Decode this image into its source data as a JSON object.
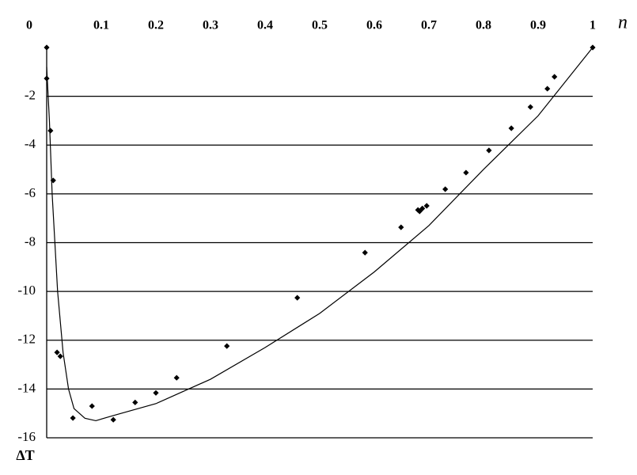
{
  "chart_data": {
    "type": "scatter",
    "x_label": "n",
    "y_label": "ΔT",
    "xlim": [
      0,
      1
    ],
    "ylim": [
      -16,
      0
    ],
    "xticks": [
      0,
      0.1,
      0.2,
      0.3,
      0.4,
      0.5,
      0.6,
      0.7,
      0.8,
      0.9,
      1
    ],
    "yticks": [
      -2,
      -4,
      -6,
      -8,
      -10,
      -12,
      -14,
      -16
    ],
    "grid": true,
    "series": [
      {
        "type": "scatter",
        "color": "#000000",
        "x": [
          0,
          0,
          0.007,
          0.012,
          0.019,
          0.025,
          0.048,
          0.083,
          0.122,
          0.162,
          0.2,
          0.238,
          0.33,
          0.459,
          0.583,
          0.649,
          0.68,
          0.683,
          0.688,
          0.696,
          0.73,
          0.768,
          0.81,
          0.851,
          0.886,
          0.917,
          0.93,
          1
        ],
        "values": [
          0,
          -1.27,
          -3.41,
          -5.45,
          -12.5,
          -12.66,
          -15.19,
          -14.7,
          -15.26,
          -14.55,
          -14.16,
          -13.54,
          -12.24,
          -10.26,
          -8.41,
          -7.37,
          -6.66,
          -6.72,
          -6.6,
          -6.49,
          -5.81,
          -5.13,
          -4.22,
          -3.31,
          -2.44,
          -1.69,
          -1.2,
          0
        ]
      },
      {
        "type": "line",
        "color": "#000000",
        "x": [
          0,
          0.005,
          0.01,
          0.02,
          0.03,
          0.04,
          0.05,
          0.07,
          0.09,
          0.12,
          0.2,
          0.3,
          0.4,
          0.5,
          0.6,
          0.7,
          0.8,
          0.9,
          1
        ],
        "values": [
          -0.8,
          -3,
          -6,
          -10,
          -12.5,
          -14,
          -14.8,
          -15.2,
          -15.3,
          -15.1,
          -14.6,
          -13.6,
          -12.3,
          -10.9,
          -9.2,
          -7.3,
          -5.0,
          -2.8,
          0
        ]
      }
    ]
  }
}
